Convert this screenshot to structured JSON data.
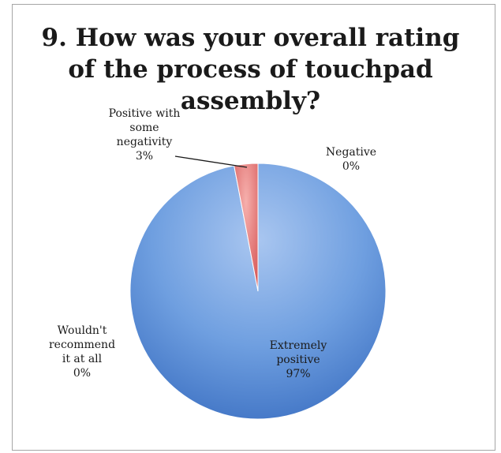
{
  "chart_data": {
    "type": "pie",
    "title_lines": [
      "9. How was your overall rating",
      "of the process of touchpad",
      "assembly?"
    ],
    "slices": [
      {
        "label_lines": [
          "Extremely",
          "positive",
          "97%"
        ],
        "value": 97,
        "color": "#5b8fd6"
      },
      {
        "label_lines": [
          "Positive with",
          "some",
          "negativity",
          "3%"
        ],
        "value": 3,
        "color": "#e06666"
      },
      {
        "label_lines": [
          "Negative",
          "0%"
        ],
        "value": 0,
        "color": "#9bbb59"
      },
      {
        "label_lines": [
          "Wouldn't",
          "recommend",
          "it at all",
          "0%"
        ],
        "value": 0,
        "color": "#8064a2"
      }
    ],
    "legend": "none",
    "grid": false
  }
}
